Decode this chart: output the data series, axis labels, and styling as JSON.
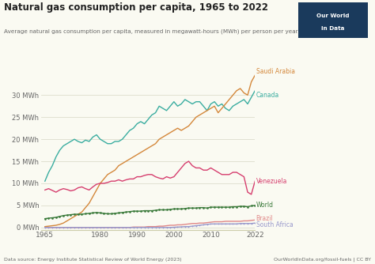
{
  "title": "Natural gas consumption per capita, 1965 to 2022",
  "subtitle": "Average natural gas consumption per capita, measured in megawatt-hours (MWh) per person per year.",
  "datasource": "Data source: Energy Institute Statistical Review of World Energy (2023)",
  "url": "OurWorldInData.org/fossil-fuels | CC BY",
  "years": [
    1965,
    1966,
    1967,
    1968,
    1969,
    1970,
    1971,
    1972,
    1973,
    1974,
    1975,
    1976,
    1977,
    1978,
    1979,
    1980,
    1981,
    1982,
    1983,
    1984,
    1985,
    1986,
    1987,
    1988,
    1989,
    1990,
    1991,
    1992,
    1993,
    1994,
    1995,
    1996,
    1997,
    1998,
    1999,
    2000,
    2001,
    2002,
    2003,
    2004,
    2005,
    2006,
    2007,
    2008,
    2009,
    2010,
    2011,
    2012,
    2013,
    2014,
    2015,
    2016,
    2017,
    2018,
    2019,
    2020,
    2021,
    2022
  ],
  "canada": [
    10.5,
    12.5,
    14.0,
    16.0,
    17.5,
    18.5,
    19.0,
    19.5,
    20.0,
    19.5,
    19.2,
    19.8,
    19.5,
    20.5,
    21.0,
    20.0,
    19.5,
    19.0,
    19.0,
    19.5,
    19.5,
    20.0,
    21.0,
    22.0,
    22.5,
    23.5,
    24.0,
    23.5,
    24.5,
    25.5,
    26.0,
    27.5,
    27.0,
    26.5,
    27.5,
    28.5,
    27.5,
    28.0,
    29.0,
    28.5,
    28.0,
    28.5,
    28.5,
    27.5,
    26.5,
    28.0,
    28.5,
    27.5,
    28.0,
    27.0,
    26.5,
    27.5,
    28.0,
    28.5,
    29.0,
    28.0,
    29.5,
    31.0
  ],
  "saudi_arabia": [
    0.2,
    0.3,
    0.4,
    0.5,
    0.7,
    1.0,
    1.5,
    2.0,
    2.5,
    3.0,
    3.5,
    4.5,
    5.5,
    7.0,
    8.5,
    10.0,
    11.0,
    12.0,
    12.5,
    13.0,
    14.0,
    14.5,
    15.0,
    15.5,
    16.0,
    16.5,
    17.0,
    17.5,
    18.0,
    18.5,
    19.0,
    20.0,
    20.5,
    21.0,
    21.5,
    22.0,
    22.5,
    22.0,
    22.5,
    23.0,
    24.0,
    25.0,
    25.5,
    26.0,
    26.5,
    27.0,
    27.5,
    26.0,
    27.0,
    28.0,
    29.0,
    30.0,
    31.0,
    31.5,
    30.5,
    30.0,
    33.0,
    34.5
  ],
  "venezuela": [
    8.5,
    8.8,
    8.4,
    8.0,
    8.5,
    8.8,
    8.6,
    8.3,
    8.5,
    9.0,
    9.2,
    8.8,
    8.5,
    9.2,
    9.8,
    10.0,
    10.0,
    10.2,
    10.5,
    10.5,
    10.8,
    10.5,
    10.8,
    11.0,
    11.0,
    11.5,
    11.5,
    11.8,
    12.0,
    12.0,
    11.5,
    11.2,
    11.0,
    11.5,
    11.2,
    11.5,
    12.5,
    13.5,
    14.5,
    15.0,
    14.0,
    13.5,
    13.5,
    13.0,
    13.0,
    13.5,
    13.0,
    12.5,
    12.0,
    12.0,
    12.0,
    12.5,
    12.5,
    12.0,
    11.5,
    8.0,
    7.5,
    10.5
  ],
  "world": [
    2.0,
    2.1,
    2.2,
    2.3,
    2.5,
    2.7,
    2.8,
    2.9,
    3.0,
    3.0,
    3.0,
    3.1,
    3.2,
    3.3,
    3.4,
    3.3,
    3.2,
    3.1,
    3.1,
    3.2,
    3.3,
    3.4,
    3.5,
    3.6,
    3.7,
    3.7,
    3.7,
    3.8,
    3.8,
    3.8,
    3.9,
    4.0,
    4.0,
    4.0,
    4.1,
    4.2,
    4.2,
    4.2,
    4.3,
    4.4,
    4.4,
    4.4,
    4.5,
    4.5,
    4.4,
    4.6,
    4.6,
    4.6,
    4.6,
    4.6,
    4.6,
    4.7,
    4.7,
    4.8,
    4.8,
    4.7,
    4.9,
    5.0
  ],
  "brazil": [
    0.0,
    0.0,
    0.0,
    0.0,
    0.0,
    0.0,
    0.0,
    0.0,
    0.0,
    0.0,
    0.0,
    0.0,
    0.0,
    0.0,
    0.0,
    0.0,
    0.0,
    0.0,
    0.0,
    0.0,
    0.0,
    0.0,
    0.0,
    0.0,
    0.1,
    0.1,
    0.1,
    0.1,
    0.2,
    0.2,
    0.2,
    0.3,
    0.3,
    0.4,
    0.5,
    0.5,
    0.6,
    0.6,
    0.7,
    0.8,
    0.9,
    0.9,
    1.0,
    1.0,
    1.1,
    1.2,
    1.3,
    1.3,
    1.3,
    1.4,
    1.4,
    1.4,
    1.4,
    1.4,
    1.5,
    1.5,
    1.6,
    1.7
  ],
  "south_africa": [
    0.0,
    0.0,
    0.0,
    0.0,
    0.0,
    0.0,
    0.0,
    0.0,
    0.0,
    0.0,
    0.0,
    0.0,
    0.0,
    0.0,
    0.0,
    0.0,
    0.0,
    0.0,
    0.0,
    0.0,
    0.0,
    0.0,
    0.0,
    0.0,
    0.0,
    0.0,
    0.0,
    0.0,
    0.0,
    0.0,
    0.0,
    0.0,
    0.0,
    0.0,
    0.0,
    0.05,
    0.1,
    0.15,
    0.2,
    0.2,
    0.3,
    0.4,
    0.5,
    0.6,
    0.7,
    0.8,
    0.8,
    0.8,
    0.8,
    0.8,
    0.8,
    0.8,
    0.8,
    0.9,
    0.9,
    0.9,
    0.9,
    1.0
  ],
  "colors": {
    "canada": "#3aada0",
    "saudi_arabia": "#d4873a",
    "venezuela": "#d63e6e",
    "world": "#3a7a3a",
    "brazil": "#e08888",
    "south_africa": "#9999cc"
  },
  "ylim": [
    -0.5,
    36
  ],
  "yticks": [
    0,
    5,
    10,
    15,
    20,
    25,
    30
  ],
  "ytick_labels": [
    "0 MWh",
    "5 MWh",
    "10 MWh",
    "15 MWh",
    "20 MWh",
    "25 MWh",
    "30 MWh"
  ],
  "xticks": [
    1965,
    1980,
    1990,
    2000,
    2010,
    2022
  ],
  "bg_color": "#fafaf2",
  "plot_bg_color": "#fafaf2",
  "logo_bg": "#1a3a5c",
  "label_offsets": {
    "saudi_arabia": 0.8,
    "canada": -1.0,
    "venezuela": 0.0,
    "world": 0.0,
    "brazil": 0.3,
    "south_africa": -0.4
  }
}
